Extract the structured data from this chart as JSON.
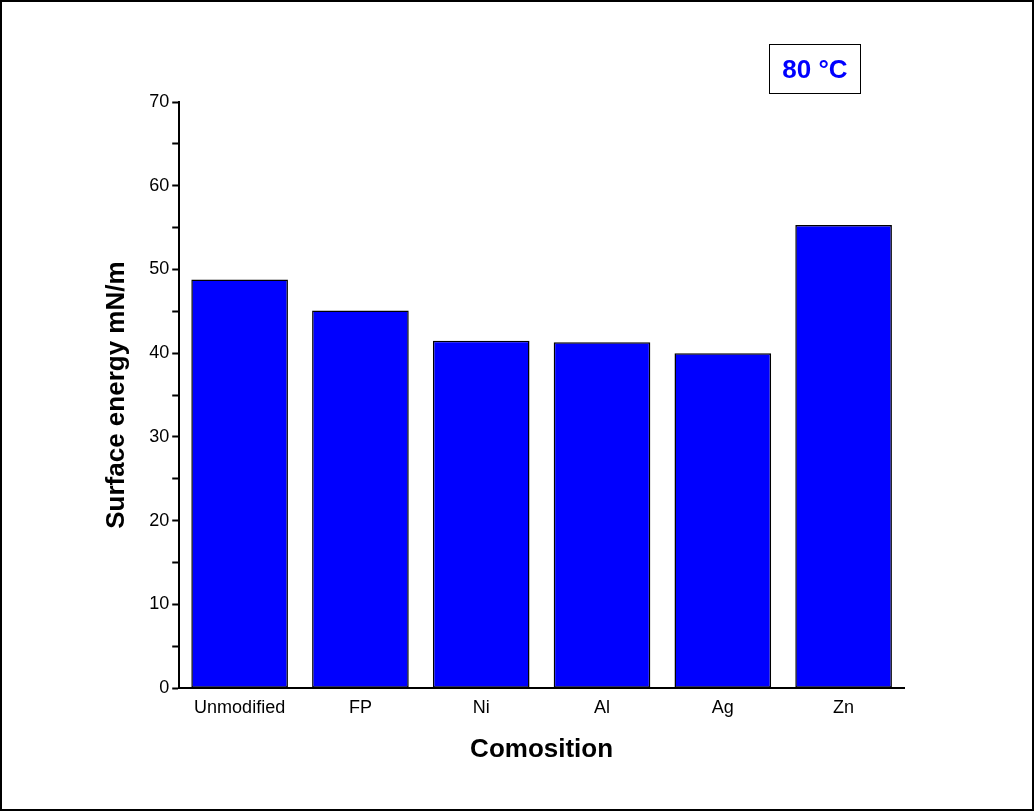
{
  "chart_data": {
    "type": "bar",
    "xlabel": "Comosition",
    "ylabel": "Surface energy mN/m",
    "categories": [
      "Unmodified",
      "FP",
      "Ni",
      "Al",
      "Ag",
      "Zn"
    ],
    "values": [
      48.8,
      45.1,
      41.5,
      41.3,
      40.0,
      55.3
    ],
    "color": "#0000ff",
    "ylim": [
      0,
      70
    ],
    "yticks": [
      0,
      {
        "value": 5,
        "label": null
      },
      10,
      {
        "value": 15,
        "label": null
      },
      20,
      {
        "value": 25,
        "label": null
      },
      30,
      {
        "value": 35,
        "label": null
      },
      40,
      {
        "value": 45,
        "label": null
      },
      50,
      {
        "value": 55,
        "label": null
      },
      60,
      {
        "value": 65,
        "label": null
      },
      70
    ],
    "annotations": [
      "80 °C"
    ],
    "grid": false,
    "legend": false
  }
}
